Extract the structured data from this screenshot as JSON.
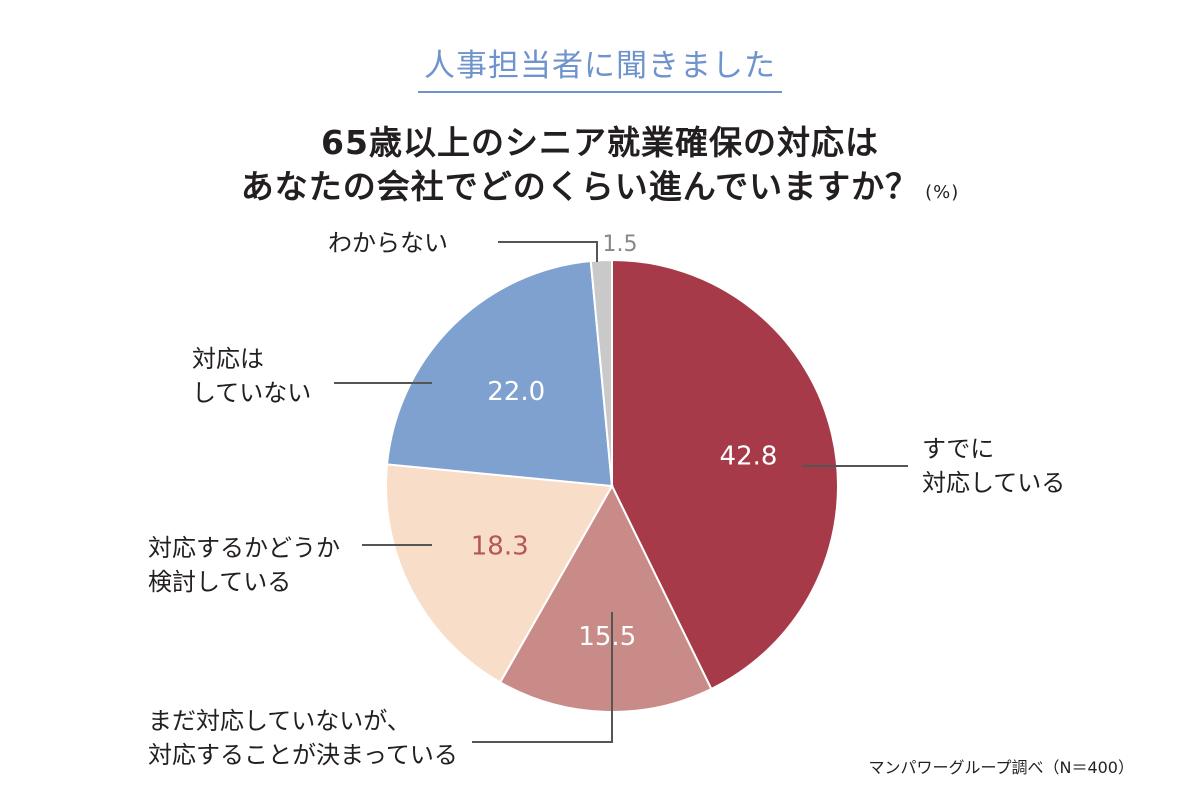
{
  "subtitle": "人事担当者に聞きました",
  "title_line1": "65歳以上のシニア就業確保の対応は",
  "title_line2": "あなたの会社でどのくらい進んでいますか？",
  "unit": "(%)",
  "source": "マンパワーグループ調べ（N＝400）",
  "chart_data": {
    "type": "pie",
    "slices": [
      {
        "label_lines": [
          "すでに",
          "対応している"
        ],
        "value": 42.8,
        "value_label": "42.8",
        "color": "#a73a48",
        "value_text_color": "#ffffff"
      },
      {
        "label_lines": [
          "まだ対応していないが、",
          "対応することが決まっている"
        ],
        "value": 15.5,
        "value_label": "15.5",
        "color": "#c98b88",
        "value_text_color": "#ffffff"
      },
      {
        "label_lines": [
          "対応するかどうか",
          "検討している"
        ],
        "value": 18.3,
        "value_label": "18.3",
        "color": "#f8dec9",
        "value_text_color": "#b4565a"
      },
      {
        "label_lines": [
          "対応は",
          "していない"
        ],
        "value": 22.0,
        "value_label": "22.0",
        "color": "#7ea1d0",
        "value_text_color": "#ffffff"
      },
      {
        "label_lines": [
          "わからない"
        ],
        "value": 1.5,
        "value_label": "1.5",
        "color": "#c9c9c9",
        "value_text_color": "#888888"
      }
    ]
  }
}
